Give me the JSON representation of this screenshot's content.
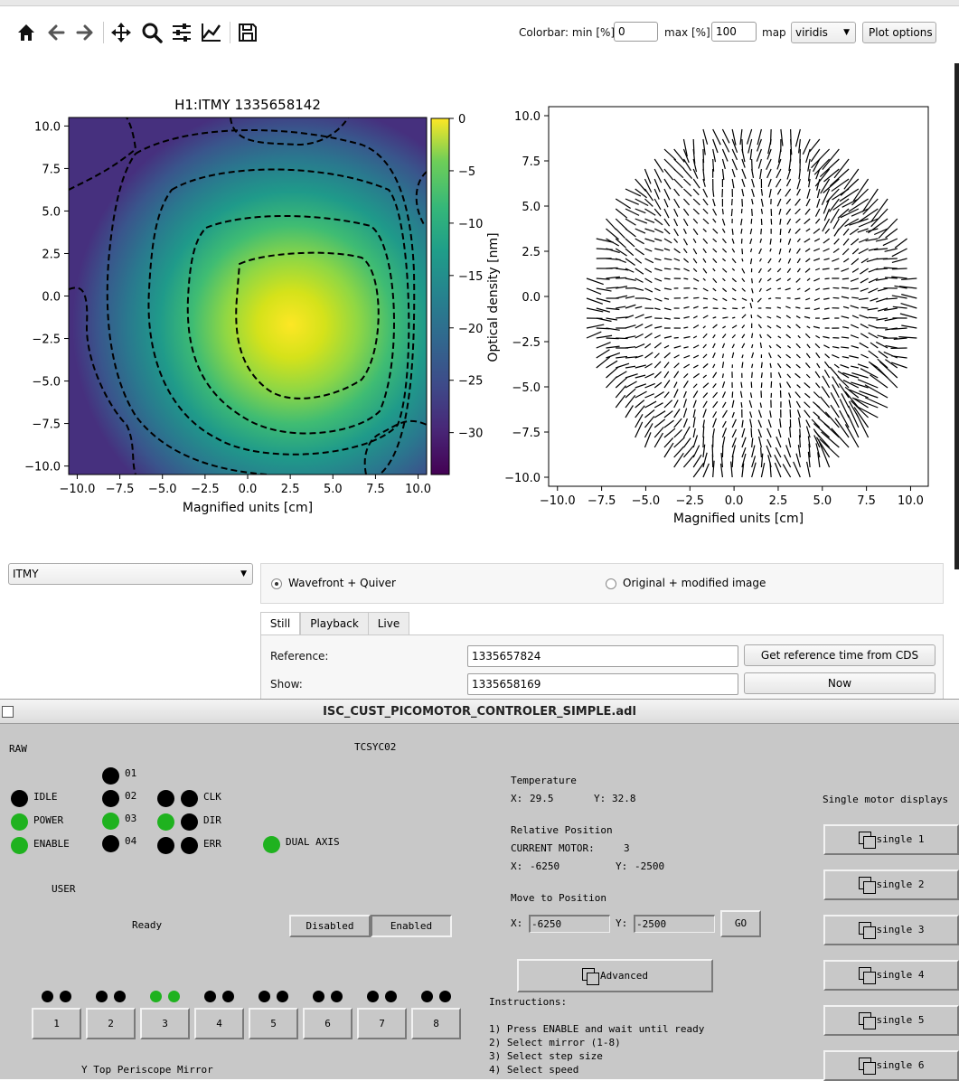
{
  "toolbar": {
    "icons": [
      "home-icon",
      "back-arrow-icon",
      "forward-arrow-icon",
      "pan-icon",
      "zoom-icon",
      "configure-icon",
      "edit-curves-icon",
      "save-icon"
    ],
    "colorbar_min_label": "Colorbar: min [%]",
    "colorbar_min_value": "0",
    "colorbar_max_label": "max [%]",
    "colorbar_max_value": "100",
    "map_label": "map",
    "map_value": "viridis",
    "plot_options_label": "Plot options"
  },
  "chart_data": [
    {
      "type": "heatmap",
      "title": "H1:ITMY 1335658142",
      "xlabel": "Magnified units [cm]",
      "ylabel": "",
      "xlim": [
        -10.5,
        10.5
      ],
      "ylim": [
        -10.5,
        10.5
      ],
      "xticks": [
        "−10.0",
        "−7.5",
        "−5.0",
        "−2.5",
        "0.0",
        "2.5",
        "5.0",
        "7.5",
        "10.0"
      ],
      "yticks": [
        "10.0",
        "7.5",
        "5.0",
        "2.5",
        "0.0",
        "−2.5",
        "−5.0",
        "−7.5",
        "−10.0"
      ],
      "colormap": "viridis",
      "colorbar": {
        "label": "Optical density [nm]",
        "ticks": [
          "0",
          "−5",
          "−10",
          "−15",
          "−20",
          "−25",
          "−30"
        ],
        "range": [
          -34,
          0
        ]
      },
      "contours": "dashed black",
      "peak_center": [
        1.5,
        -1.0
      ]
    },
    {
      "type": "quiver",
      "title": "",
      "xlabel": "Magnified units [cm]",
      "ylabel": "",
      "xlim": [
        -10.5,
        11
      ],
      "ylim": [
        -10.5,
        10.5
      ],
      "xticks": [
        "−10.0",
        "−7.5",
        "−5.0",
        "−2.5",
        "0.0",
        "2.5",
        "5.0",
        "7.5",
        "10.0"
      ],
      "yticks": [
        "10.0",
        "7.5",
        "5.0",
        "2.5",
        "0.0",
        "−2.5",
        "−5.0",
        "−7.5",
        "−10.0"
      ],
      "grid": false
    }
  ],
  "optic_select": "ITMY",
  "display_modes": [
    "Wavefront + Quiver",
    "Original + modified image"
  ],
  "selected_mode": "Wavefront + Quiver",
  "tabs": [
    "Still",
    "Playback",
    "Live"
  ],
  "active_tab": "Still",
  "still": {
    "reference_label": "Reference:",
    "reference_value": "1335657824",
    "get_reference_button": "Get reference time from CDS",
    "show_label": "Show:",
    "show_value": "1335658169",
    "now_button": "Now"
  },
  "medm": {
    "title": "ISC_CUST_PICOMOTOR_CONTROLER_SIMPLE.adl",
    "raw_label": "RAW",
    "device": "TCSYC02",
    "status_leds": [
      {
        "label": "IDLE",
        "on": false
      },
      {
        "label": "POWER",
        "on": true
      },
      {
        "label": "ENABLE",
        "on": true
      }
    ],
    "channel_leds": [
      {
        "label": "01",
        "on": false
      },
      {
        "label": "02",
        "on": false
      },
      {
        "label": "03",
        "on": true
      },
      {
        "label": "04",
        "on": false
      }
    ],
    "pair_leds": [
      {
        "label": "CLK",
        "a": false,
        "b": false
      },
      {
        "label": "DIR",
        "a": true,
        "b": false
      },
      {
        "label": "ERR",
        "a": false,
        "b": false
      }
    ],
    "dual_axis_label": "DUAL AXIS",
    "dual_axis_on": true,
    "user_label": "USER",
    "ready_text": "Ready",
    "disabled_button": "Disabled",
    "enabled_button": "Enabled",
    "mirror_buttons": [
      "1",
      "2",
      "3",
      "4",
      "5",
      "6",
      "7",
      "8"
    ],
    "mirror_active": "3",
    "mirror_name": "Y Top Periscope Mirror",
    "temperature_label": "Temperature",
    "temp_x_label": "X:",
    "temp_x": "29.5",
    "temp_y_label": "Y:",
    "temp_y": "32.8",
    "relpos_label": "Relative Position",
    "current_motor_label": "CURRENT MOTOR:",
    "current_motor": "3",
    "rel_x_label": "X:",
    "rel_x": "-6250",
    "rel_y_label": "Y:",
    "rel_y": "-2500",
    "move_label": "Move to Position",
    "move_x_label": "X:",
    "move_x": "-6250",
    "move_y_label": "Y:",
    "move_y": "-2500",
    "go_button": "GO",
    "advanced_button": "Advanced",
    "instructions_label": "Instructions:",
    "instructions": [
      "1) Press ENABLE and wait until ready",
      "2) Select mirror (1-8)",
      "3) Select step size",
      "4) Select speed"
    ],
    "single_label": "Single motor displays",
    "single_buttons": [
      "single 1",
      "single 2",
      "single 3",
      "single 4",
      "single 5",
      "single 6"
    ]
  }
}
